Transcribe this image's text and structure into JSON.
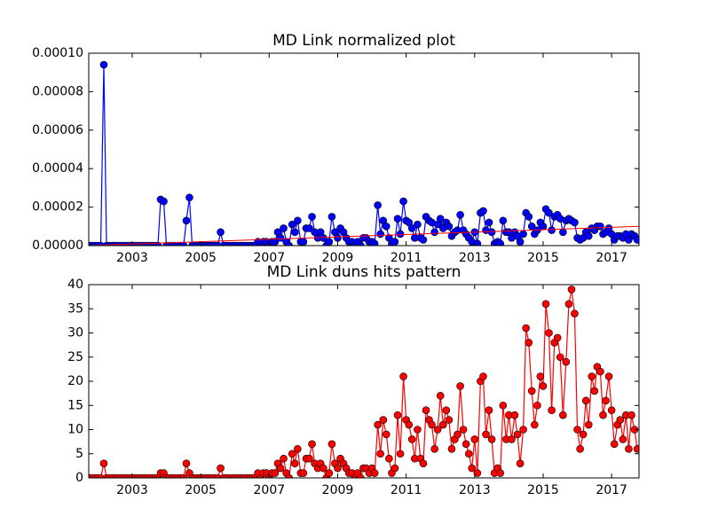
{
  "chart_data": [
    {
      "type": "line",
      "title": "MD Link normalized plot",
      "color": "#0000ff",
      "x": [
        2001.75,
        2001.83,
        2001.92,
        2002.0,
        2002.08,
        2002.17,
        2002.25,
        2002.33,
        2002.42,
        2002.5,
        2002.58,
        2002.67,
        2002.75,
        2002.83,
        2002.92,
        2003.0,
        2003.08,
        2003.17,
        2003.25,
        2003.33,
        2003.42,
        2003.5,
        2003.58,
        2003.67,
        2003.75,
        2003.83,
        2003.92,
        2004.0,
        2004.08,
        2004.17,
        2004.25,
        2004.33,
        2004.42,
        2004.5,
        2004.58,
        2004.67,
        2004.75,
        2004.83,
        2004.92,
        2005.0,
        2005.08,
        2005.17,
        2005.25,
        2005.33,
        2005.42,
        2005.5,
        2005.58,
        2005.67,
        2005.75,
        2005.83,
        2005.92,
        2006.0,
        2006.08,
        2006.17,
        2006.25,
        2006.33,
        2006.42,
        2006.5,
        2006.58,
        2006.67,
        2006.75,
        2006.83,
        2006.92,
        2007.0,
        2007.08,
        2007.17,
        2007.25,
        2007.33,
        2007.42,
        2007.5,
        2007.58,
        2007.67,
        2007.75,
        2007.83,
        2007.92,
        2008.0,
        2008.08,
        2008.17,
        2008.25,
        2008.33,
        2008.42,
        2008.5,
        2008.58,
        2008.67,
        2008.75,
        2008.83,
        2008.92,
        2009.0,
        2009.08,
        2009.17,
        2009.25,
        2009.33,
        2009.42,
        2009.5,
        2009.58,
        2009.67,
        2009.75,
        2009.83,
        2009.92,
        2010.0,
        2010.08,
        2010.17,
        2010.25,
        2010.33,
        2010.42,
        2010.5,
        2010.58,
        2010.67,
        2010.75,
        2010.83,
        2010.92,
        2011.0,
        2011.08,
        2011.17,
        2011.25,
        2011.33,
        2011.42,
        2011.5,
        2011.58,
        2011.67,
        2011.75,
        2011.83,
        2011.92,
        2012.0,
        2012.08,
        2012.17,
        2012.25,
        2012.33,
        2012.42,
        2012.5,
        2012.58,
        2012.67,
        2012.75,
        2012.83,
        2012.92,
        2013.0,
        2013.08,
        2013.17,
        2013.25,
        2013.33,
        2013.42,
        2013.5,
        2013.58,
        2013.67,
        2013.75,
        2013.83,
        2013.92,
        2014.0,
        2014.08,
        2014.17,
        2014.25,
        2014.33,
        2014.42,
        2014.5,
        2014.58,
        2014.67,
        2014.75,
        2014.83,
        2014.92,
        2015.0,
        2015.08,
        2015.17,
        2015.25,
        2015.33,
        2015.42,
        2015.5,
        2015.58,
        2015.67,
        2015.75,
        2015.83,
        2015.92,
        2016.0,
        2016.08,
        2016.17,
        2016.25,
        2016.33,
        2016.42,
        2016.5,
        2016.58,
        2016.67,
        2016.75,
        2016.83,
        2016.92,
        2017.0,
        2017.08,
        2017.17,
        2017.25,
        2017.33,
        2017.42,
        2017.5,
        2017.58,
        2017.67,
        2017.75
      ],
      "values": [
        0,
        0,
        0,
        0,
        0,
        9.4e-05,
        0,
        0,
        0,
        0,
        0,
        0,
        0,
        0,
        0,
        0,
        0,
        0,
        0,
        0,
        0,
        0,
        0,
        0,
        0,
        2.4e-05,
        2.3e-05,
        0,
        0,
        0,
        0,
        0,
        0,
        0,
        1.3e-05,
        2.5e-05,
        0,
        0,
        0,
        0,
        0,
        0,
        0,
        0,
        0,
        0,
        7e-06,
        0,
        0,
        0,
        0,
        0,
        0,
        0,
        0,
        0,
        0,
        0,
        0,
        2e-06,
        0,
        2e-06,
        2e-06,
        0,
        2e-06,
        2e-06,
        7e-06,
        4e-06,
        9e-06,
        2e-06,
        0,
        1.1e-05,
        7e-06,
        1.3e-05,
        2e-06,
        2e-06,
        9e-06,
        9e-06,
        1.5e-05,
        7e-06,
        4e-06,
        7e-06,
        4e-06,
        0,
        2e-06,
        1.5e-05,
        7e-06,
        4e-06,
        9e-06,
        7e-06,
        4e-06,
        2e-06,
        2e-06,
        0,
        2e-06,
        0,
        4e-06,
        4e-06,
        2e-06,
        2e-06,
        1e-06,
        2.1e-05,
        6e-06,
        1.3e-05,
        1e-05,
        4e-06,
        1e-06,
        2e-06,
        1.4e-05,
        6e-06,
        2.3e-05,
        1.3e-05,
        1.2e-05,
        9e-06,
        4e-06,
        1.1e-05,
        4e-06,
        3e-06,
        1.5e-05,
        1.3e-05,
        1.2e-05,
        7e-06,
        1.1e-05,
        1.4e-05,
        9e-06,
        1.2e-05,
        1e-05,
        5e-06,
        7e-06,
        8e-06,
        1.6e-05,
        8e-06,
        6e-06,
        4e-06,
        2e-06,
        7e-06,
        1e-06,
        1.7e-05,
        1.8e-05,
        8e-06,
        1.2e-05,
        7e-06,
        1e-06,
        2e-06,
        1e-06,
        1.3e-05,
        7e-06,
        7e-06,
        4e-06,
        7e-06,
        5e-06,
        2e-06,
        6e-06,
        1.7e-05,
        1.5e-05,
        1e-05,
        6e-06,
        8e-06,
        1.2e-05,
        1e-05,
        1.9e-05,
        1.7e-05,
        8e-06,
        1.5e-05,
        1.6e-05,
        1.4e-05,
        7e-06,
        1.3e-05,
        1.4e-05,
        1.3e-05,
        1.2e-05,
        4e-06,
        3e-06,
        4e-06,
        7e-06,
        5e-06,
        9e-06,
        8e-06,
        1e-05,
        1e-05,
        6e-06,
        7e-06,
        9e-06,
        6e-06,
        3e-06,
        5e-06,
        5e-06,
        4e-06,
        6e-06,
        3e-06,
        6e-06,
        5e-06,
        3e-06
      ],
      "trend": {
        "x": [
          2001.73,
          2017.8
        ],
        "values": [
          0,
          1e-05
        ],
        "color": "#ff0000"
      },
      "xlim": [
        2001.73,
        2017.8
      ],
      "xticks": [
        2003,
        2005,
        2007,
        2009,
        2011,
        2013,
        2015,
        2017
      ],
      "ylim": [
        0,
        0.0001
      ],
      "yticks": [
        {
          "value": 0,
          "label": "0.00000"
        },
        {
          "value": 2e-05,
          "label": "0.00002"
        },
        {
          "value": 4e-05,
          "label": "0.00004"
        },
        {
          "value": 6e-05,
          "label": "0.00006"
        },
        {
          "value": 8e-05,
          "label": "0.00008"
        },
        {
          "value": 0.0001,
          "label": "0.00010"
        }
      ]
    },
    {
      "type": "line",
      "title": "MD Link duns hits pattern",
      "color": "#ff0000",
      "x": [
        2001.75,
        2001.83,
        2001.92,
        2002.0,
        2002.08,
        2002.17,
        2002.25,
        2002.33,
        2002.42,
        2002.5,
        2002.58,
        2002.67,
        2002.75,
        2002.83,
        2002.92,
        2003.0,
        2003.08,
        2003.17,
        2003.25,
        2003.33,
        2003.42,
        2003.5,
        2003.58,
        2003.67,
        2003.75,
        2003.83,
        2003.92,
        2004.0,
        2004.08,
        2004.17,
        2004.25,
        2004.33,
        2004.42,
        2004.5,
        2004.58,
        2004.67,
        2004.75,
        2004.83,
        2004.92,
        2005.0,
        2005.08,
        2005.17,
        2005.25,
        2005.33,
        2005.42,
        2005.5,
        2005.58,
        2005.67,
        2005.75,
        2005.83,
        2005.92,
        2006.0,
        2006.08,
        2006.17,
        2006.25,
        2006.33,
        2006.42,
        2006.5,
        2006.58,
        2006.67,
        2006.75,
        2006.83,
        2006.92,
        2007.0,
        2007.08,
        2007.17,
        2007.25,
        2007.33,
        2007.42,
        2007.5,
        2007.58,
        2007.67,
        2007.75,
        2007.83,
        2007.92,
        2008.0,
        2008.08,
        2008.17,
        2008.25,
        2008.33,
        2008.42,
        2008.5,
        2008.58,
        2008.67,
        2008.75,
        2008.83,
        2008.92,
        2009.0,
        2009.08,
        2009.17,
        2009.25,
        2009.33,
        2009.42,
        2009.5,
        2009.58,
        2009.67,
        2009.75,
        2009.83,
        2009.92,
        2010.0,
        2010.08,
        2010.17,
        2010.25,
        2010.33,
        2010.42,
        2010.5,
        2010.58,
        2010.67,
        2010.75,
        2010.83,
        2010.92,
        2011.0,
        2011.08,
        2011.17,
        2011.25,
        2011.33,
        2011.42,
        2011.5,
        2011.58,
        2011.67,
        2011.75,
        2011.83,
        2011.92,
        2012.0,
        2012.08,
        2012.17,
        2012.25,
        2012.33,
        2012.42,
        2012.5,
        2012.58,
        2012.67,
        2012.75,
        2012.83,
        2012.92,
        2013.0,
        2013.08,
        2013.17,
        2013.25,
        2013.33,
        2013.42,
        2013.5,
        2013.58,
        2013.67,
        2013.75,
        2013.83,
        2013.92,
        2014.0,
        2014.08,
        2014.17,
        2014.25,
        2014.33,
        2014.42,
        2014.5,
        2014.58,
        2014.67,
        2014.75,
        2014.83,
        2014.92,
        2015.0,
        2015.08,
        2015.17,
        2015.25,
        2015.33,
        2015.42,
        2015.5,
        2015.58,
        2015.67,
        2015.75,
        2015.83,
        2015.92,
        2016.0,
        2016.08,
        2016.17,
        2016.25,
        2016.33,
        2016.42,
        2016.5,
        2016.58,
        2016.67,
        2016.75,
        2016.83,
        2016.92,
        2017.0,
        2017.08,
        2017.17,
        2017.25,
        2017.33,
        2017.42,
        2017.5,
        2017.58,
        2017.67,
        2017.75
      ],
      "values": [
        0,
        0,
        0,
        0,
        0,
        3,
        0,
        0,
        0,
        0,
        0,
        0,
        0,
        0,
        0,
        0,
        0,
        0,
        0,
        0,
        0,
        0,
        0,
        0,
        0,
        1,
        1,
        0,
        0,
        0,
        0,
        0,
        0,
        0,
        3,
        1,
        0,
        0,
        0,
        0,
        0,
        0,
        0,
        0,
        0,
        0,
        2,
        0,
        0,
        0,
        0,
        0,
        0,
        0,
        0,
        0,
        0,
        0,
        0,
        1,
        0,
        1,
        1,
        0,
        1,
        1,
        3,
        2,
        4,
        1,
        0,
        5,
        3,
        6,
        1,
        1,
        4,
        4,
        7,
        3,
        2,
        3,
        2,
        0,
        1,
        7,
        3,
        2,
        4,
        3,
        2,
        1,
        1,
        0,
        1,
        0,
        2,
        2,
        1,
        2,
        1,
        11,
        5,
        12,
        9,
        4,
        1,
        2,
        13,
        5,
        21,
        12,
        11,
        8,
        4,
        10,
        4,
        3,
        14,
        12,
        11,
        6,
        10,
        17,
        11,
        14,
        12,
        6,
        8,
        9,
        19,
        10,
        7,
        5,
        2,
        8,
        1,
        20,
        21,
        9,
        14,
        8,
        1,
        2,
        1,
        15,
        8,
        13,
        8,
        13,
        9,
        3,
        10,
        31,
        28,
        18,
        11,
        15,
        21,
        19,
        36,
        30,
        14,
        28,
        29,
        25,
        13,
        24,
        36,
        39,
        34,
        10,
        6,
        9,
        16,
        11,
        21,
        18,
        23,
        22,
        13,
        16,
        21,
        14,
        7,
        11,
        12,
        8,
        13,
        6,
        13,
        10,
        6
      ],
      "xlim": [
        2001.73,
        2017.8
      ],
      "xticks": [
        2003,
        2005,
        2007,
        2009,
        2011,
        2013,
        2015,
        2017
      ],
      "ylim": [
        0,
        40
      ],
      "yticks": [
        0,
        5,
        10,
        15,
        20,
        25,
        30,
        35,
        40
      ]
    }
  ]
}
